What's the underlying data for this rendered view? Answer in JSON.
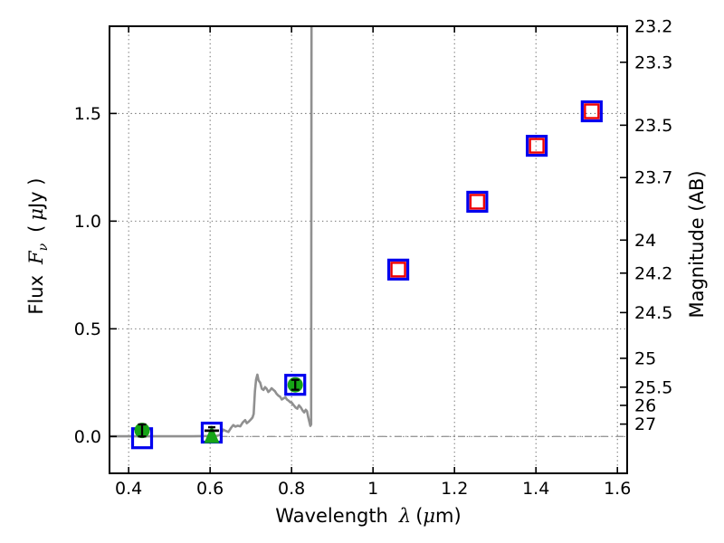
{
  "colors": {
    "blue_square": "#0000ee",
    "red_square": "#ee0000",
    "green_marker": "#16a416",
    "spectrum_gray": "#909090",
    "zero_line_gray": "#999999",
    "grid": "#3a3a3a",
    "axis": "#000000"
  },
  "chart_data": {
    "type": "scatter",
    "title": "",
    "xlabel": "Wavelength  λ (μm)",
    "ylabel_left": "Flux  Fν  ( μJy )",
    "ylabel_right": "Magnitude (AB)",
    "xlabel_parts": {
      "text": "Wavelength",
      "sym": "λ",
      "open": "(",
      "mu": "μ",
      "close": "m)"
    },
    "ylabel_left_parts": {
      "text": "Flux",
      "F": "F",
      "nu": "ν",
      "open": "(",
      "mu": "μ",
      "close": "Jy )"
    },
    "xlim": [
      0.353,
      1.624
    ],
    "ylim_flux": [
      -0.171,
      1.905
    ],
    "ab_zeropoint": 23.9,
    "grid": true,
    "legend_position": "none",
    "x_ticks": [
      {
        "v": 0.4,
        "l": "0.4"
      },
      {
        "v": 0.6,
        "l": "0.6"
      },
      {
        "v": 0.8,
        "l": "0.8"
      },
      {
        "v": 1.0,
        "l": "1"
      },
      {
        "v": 1.2,
        "l": "1.2"
      },
      {
        "v": 1.4,
        "l": "1.4"
      },
      {
        "v": 1.6,
        "l": "1.6"
      }
    ],
    "flux_ticks": [
      {
        "v": 0.0,
        "l": "0.0"
      },
      {
        "v": 0.5,
        "l": "0.5"
      },
      {
        "v": 1.0,
        "l": "1.0"
      },
      {
        "v": 1.5,
        "l": "1.5"
      }
    ],
    "mag_ticks": [
      {
        "v": 23.2,
        "l": "23.2"
      },
      {
        "v": 23.3,
        "l": "23.3"
      },
      {
        "v": 23.5,
        "l": "23.5"
      },
      {
        "v": 23.7,
        "l": "23.7"
      },
      {
        "v": 24.0,
        "l": "24"
      },
      {
        "v": 24.2,
        "l": "24.2"
      },
      {
        "v": 24.5,
        "l": "24.5"
      },
      {
        "v": 25.0,
        "l": "25"
      },
      {
        "v": 25.5,
        "l": "25.5"
      },
      {
        "v": 26.0,
        "l": "26"
      },
      {
        "v": 27.0,
        "l": "27"
      }
    ],
    "series": {
      "model_spectrum": {
        "name": "model spectrum",
        "type": "line",
        "color": "#909090",
        "line_width": 2.6,
        "points": [
          [
            0.353,
            0.001
          ],
          [
            0.555,
            0.001
          ],
          [
            0.6,
            0.002
          ],
          [
            0.617,
            0.003
          ],
          [
            0.625,
            0.008
          ],
          [
            0.632,
            0.032
          ],
          [
            0.638,
            0.026
          ],
          [
            0.645,
            0.021
          ],
          [
            0.652,
            0.042
          ],
          [
            0.657,
            0.053
          ],
          [
            0.662,
            0.046
          ],
          [
            0.668,
            0.05
          ],
          [
            0.674,
            0.047
          ],
          [
            0.68,
            0.065
          ],
          [
            0.686,
            0.076
          ],
          [
            0.69,
            0.062
          ],
          [
            0.695,
            0.069
          ],
          [
            0.7,
            0.079
          ],
          [
            0.704,
            0.088
          ],
          [
            0.707,
            0.105
          ],
          [
            0.71,
            0.21
          ],
          [
            0.713,
            0.265
          ],
          [
            0.716,
            0.287
          ],
          [
            0.719,
            0.26
          ],
          [
            0.723,
            0.25
          ],
          [
            0.727,
            0.222
          ],
          [
            0.731,
            0.216
          ],
          [
            0.735,
            0.229
          ],
          [
            0.739,
            0.221
          ],
          [
            0.743,
            0.207
          ],
          [
            0.747,
            0.214
          ],
          [
            0.751,
            0.224
          ],
          [
            0.755,
            0.217
          ],
          [
            0.759,
            0.211
          ],
          [
            0.763,
            0.199
          ],
          [
            0.767,
            0.191
          ],
          [
            0.772,
            0.184
          ],
          [
            0.776,
            0.172
          ],
          [
            0.781,
            0.178
          ],
          [
            0.785,
            0.182
          ],
          [
            0.789,
            0.171
          ],
          [
            0.793,
            0.166
          ],
          [
            0.797,
            0.159
          ],
          [
            0.801,
            0.156
          ],
          [
            0.805,
            0.146
          ],
          [
            0.81,
            0.134
          ],
          [
            0.814,
            0.129
          ],
          [
            0.818,
            0.145
          ],
          [
            0.823,
            0.134
          ],
          [
            0.827,
            0.121
          ],
          [
            0.831,
            0.112
          ],
          [
            0.835,
            0.124
          ],
          [
            0.838,
            0.117
          ],
          [
            0.841,
            0.089
          ],
          [
            0.844,
            0.065
          ],
          [
            0.846,
            0.049
          ],
          [
            0.848,
            0.056
          ],
          [
            0.849,
            1.905
          ]
        ]
      },
      "zero_line": {
        "name": "zero flux reference line",
        "y": 0.0,
        "color": "#999999",
        "style": "dash-dot"
      },
      "blue_squares": {
        "name": "photometry (open blue squares)",
        "marker": "open-square",
        "color": "#0000ee",
        "size": 21,
        "stroke": 3.2,
        "points": [
          [
            0.433,
            -0.008
          ],
          [
            0.604,
            0.018
          ],
          [
            0.809,
            0.24
          ],
          [
            1.062,
            0.775
          ],
          [
            1.256,
            1.09
          ],
          [
            1.402,
            1.35
          ],
          [
            1.537,
            1.51
          ]
        ]
      },
      "red_squares": {
        "name": "photometry (open red squares)",
        "marker": "open-square",
        "color": "#ee0000",
        "size": 15,
        "stroke": 2.4,
        "points": [
          [
            1.062,
            0.775
          ],
          [
            1.256,
            1.09
          ],
          [
            1.402,
            1.35
          ],
          [
            1.537,
            1.51
          ]
        ]
      },
      "green_circles": {
        "name": "detections (filled green circles with error bars)",
        "marker": "filled-circle",
        "color": "#16a416",
        "radius": 8.5,
        "error_color": "#000000",
        "points": [
          {
            "x": 0.433,
            "y": 0.028,
            "yerr": 0.028
          },
          {
            "x": 0.809,
            "y": 0.24,
            "yerr": 0.023
          }
        ]
      },
      "upper_limit": {
        "name": "upper limit (green triangle)",
        "marker": "filled-triangle-up",
        "color": "#16a416",
        "x": 0.604,
        "apex_flux": 0.052,
        "base_flux": -0.031,
        "bar_flux": 0.027,
        "cap_flux": 0.043,
        "bar_color": "#000000"
      }
    }
  }
}
